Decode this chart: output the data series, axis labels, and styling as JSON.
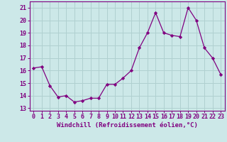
{
  "x": [
    0,
    1,
    2,
    3,
    4,
    5,
    6,
    7,
    8,
    9,
    10,
    11,
    12,
    13,
    14,
    15,
    16,
    17,
    18,
    19,
    20,
    21,
    22,
    23
  ],
  "y": [
    16.2,
    16.3,
    14.8,
    13.9,
    14.0,
    13.5,
    13.6,
    13.8,
    13.8,
    14.9,
    14.9,
    15.4,
    16.0,
    17.8,
    19.0,
    20.6,
    19.0,
    18.8,
    18.7,
    21.0,
    20.0,
    17.8,
    17.0,
    15.7
  ],
  "line_color": "#800080",
  "marker": "D",
  "marker_size": 2.2,
  "bg_color": "#cce8e8",
  "grid_color": "#b0d0d0",
  "xlabel": "Windchill (Refroidissement éolien,°C)",
  "ylabel_ticks": [
    13,
    14,
    15,
    16,
    17,
    18,
    19,
    20,
    21
  ],
  "ylim": [
    12.8,
    21.5
  ],
  "xlim": [
    -0.5,
    23.5
  ],
  "xtick_labels": [
    "0",
    "1",
    "2",
    "3",
    "4",
    "5",
    "6",
    "7",
    "8",
    "9",
    "10",
    "11",
    "12",
    "13",
    "14",
    "15",
    "16",
    "17",
    "18",
    "19",
    "20",
    "21",
    "22",
    "23"
  ],
  "tick_fontsize": 6.0,
  "xlabel_fontsize": 6.5
}
